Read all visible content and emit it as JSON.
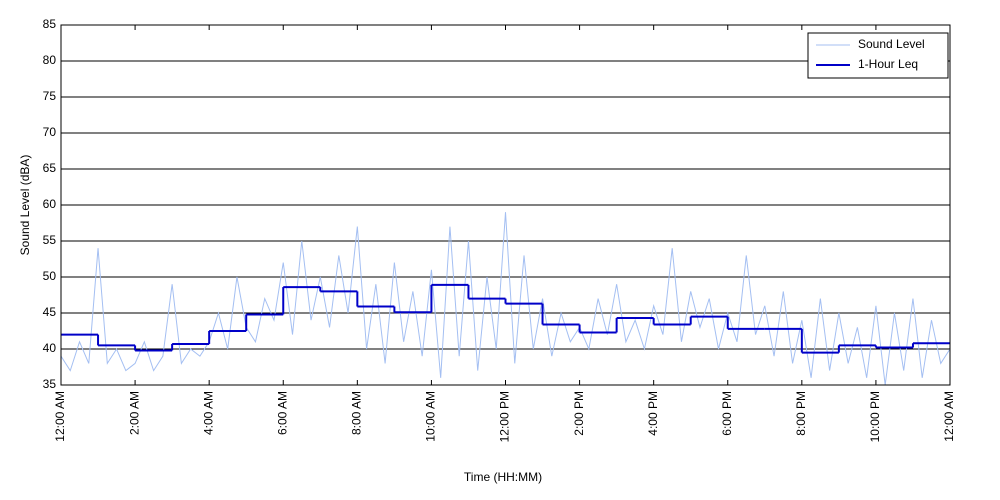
{
  "chart_data": {
    "type": "line",
    "xlabel": "Time (HH:MM)",
    "ylabel": "Sound Level (dBA)",
    "xlim": [
      0,
      24
    ],
    "xticks": [
      {
        "value": 0,
        "label": "12:00 AM"
      },
      {
        "value": 2,
        "label": "2:00 AM"
      },
      {
        "value": 4,
        "label": "4:00 AM"
      },
      {
        "value": 6,
        "label": "6:00 AM"
      },
      {
        "value": 8,
        "label": "8:00 AM"
      },
      {
        "value": 10,
        "label": "10:00 AM"
      },
      {
        "value": 12,
        "label": "12:00 PM"
      },
      {
        "value": 14,
        "label": "2:00 PM"
      },
      {
        "value": 16,
        "label": "4:00 PM"
      },
      {
        "value": 18,
        "label": "6:00 PM"
      },
      {
        "value": 20,
        "label": "8:00 PM"
      },
      {
        "value": 22,
        "label": "10:00 PM"
      },
      {
        "value": 24,
        "label": "12:00 AM"
      }
    ],
    "ylim": [
      35,
      85
    ],
    "yticks": [
      35,
      40,
      45,
      50,
      55,
      60,
      65,
      70,
      75,
      80,
      85
    ],
    "grid": true,
    "legend": "upper right",
    "series": [
      {
        "name": "Sound Level",
        "color": "#a4bff2",
        "width": 1,
        "x": [
          0,
          0.25,
          0.5,
          0.75,
          1,
          1.25,
          1.5,
          1.75,
          2,
          2.25,
          2.5,
          2.75,
          3,
          3.25,
          3.5,
          3.75,
          4,
          4.25,
          4.5,
          4.75,
          5,
          5.25,
          5.5,
          5.75,
          6,
          6.25,
          6.5,
          6.75,
          7,
          7.25,
          7.5,
          7.75,
          8,
          8.25,
          8.5,
          8.75,
          9,
          9.25,
          9.5,
          9.75,
          10,
          10.25,
          10.5,
          10.75,
          11,
          11.25,
          11.5,
          11.75,
          12,
          12.25,
          12.5,
          12.75,
          13,
          13.25,
          13.5,
          13.75,
          14,
          14.25,
          14.5,
          14.75,
          15,
          15.25,
          15.5,
          15.75,
          16,
          16.25,
          16.5,
          16.75,
          17,
          17.25,
          17.5,
          17.75,
          18,
          18.25,
          18.5,
          18.75,
          19,
          19.25,
          19.5,
          19.75,
          20,
          20.25,
          20.5,
          20.75,
          21,
          21.25,
          21.5,
          21.75,
          22,
          22.25,
          22.5,
          22.75,
          23,
          23.25,
          23.5,
          23.75,
          24
        ],
        "values": [
          39,
          37,
          41,
          38,
          54,
          38,
          40,
          37,
          38,
          41,
          37,
          39,
          49,
          38,
          40,
          39,
          41,
          45,
          40,
          50,
          43,
          41,
          47,
          44,
          52,
          42,
          55,
          44,
          50,
          43,
          53,
          45,
          57,
          40,
          49,
          38,
          52,
          41,
          48,
          39,
          51,
          36,
          57,
          39,
          55,
          37,
          50,
          40,
          59,
          38,
          53,
          40,
          47,
          39,
          45,
          41,
          43,
          40,
          47,
          42,
          49,
          41,
          44,
          40,
          46,
          42,
          54,
          41,
          48,
          43,
          47,
          40,
          45,
          41,
          53,
          42,
          46,
          39,
          48,
          38,
          44,
          36,
          47,
          37,
          45,
          38,
          43,
          36,
          46,
          35,
          45,
          37,
          47,
          36,
          44,
          38,
          40
        ]
      },
      {
        "name": "1-Hour Leq",
        "color": "#0000c8",
        "width": 2,
        "step": "post",
        "x": [
          0,
          1,
          2,
          3,
          4,
          5,
          6,
          7,
          8,
          9,
          10,
          11,
          12,
          13,
          14,
          15,
          16,
          17,
          18,
          19,
          20,
          21,
          22,
          23
        ],
        "values": [
          42,
          40.5,
          39.8,
          40.7,
          42.5,
          44.8,
          48.6,
          48,
          45.9,
          45.1,
          48.9,
          47,
          46.3,
          43.4,
          42.3,
          44.3,
          43.4,
          44.5,
          42.8,
          42.8,
          39.5,
          40.5,
          40.2,
          40.8
        ]
      }
    ]
  }
}
